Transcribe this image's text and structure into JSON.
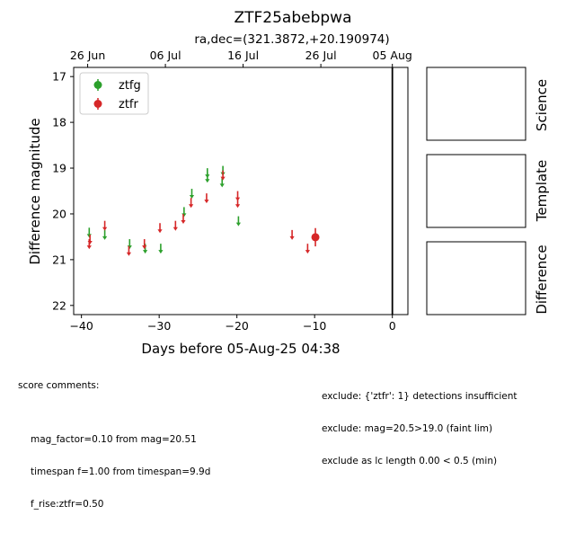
{
  "chart_data": {
    "type": "scatter",
    "title": "ZTF25abebpwa",
    "subtitle": "ra,dec=(321.3872,+20.190974)",
    "xlabel": "Days before 05-Aug-25 04:38",
    "ylabel": "Difference magnitude",
    "xlim": [
      -41,
      2
    ],
    "ylim": [
      22.2,
      16.8
    ],
    "y_inverted": true,
    "x_ticks": [
      -40,
      -30,
      -20,
      -10,
      0
    ],
    "y_ticks": [
      17,
      18,
      19,
      20,
      21,
      22
    ],
    "top_ticks": [
      {
        "x": -39.2,
        "label": "26 Jun"
      },
      {
        "x": -29.2,
        "label": "06 Jul"
      },
      {
        "x": -19.2,
        "label": "16 Jul"
      },
      {
        "x": -9.2,
        "label": "26 Jul"
      },
      {
        "x": 0.0,
        "label": "05 Aug"
      }
    ],
    "vline_x": 0,
    "legend_position": "upper-left",
    "series": [
      {
        "name": "ztfg",
        "color": "#2ca02c",
        "upper_limits": [
          {
            "x": -39.0,
            "y": 20.4
          },
          {
            "x": -37.0,
            "y": 20.45
          },
          {
            "x": -33.8,
            "y": 20.65
          },
          {
            "x": -31.8,
            "y": 20.75
          },
          {
            "x": -29.8,
            "y": 20.75
          },
          {
            "x": -26.8,
            "y": 19.95
          },
          {
            "x": -25.8,
            "y": 19.55
          },
          {
            "x": -23.8,
            "y": 19.1
          },
          {
            "x": -23.8,
            "y": 19.2
          },
          {
            "x": -21.8,
            "y": 19.05
          },
          {
            "x": -21.9,
            "y": 19.3
          },
          {
            "x": -19.8,
            "y": 20.15
          }
        ],
        "detections": []
      },
      {
        "name": "ztfr",
        "color": "#d62728",
        "upper_limits": [
          {
            "x": -38.9,
            "y": 20.55
          },
          {
            "x": -39.0,
            "y": 20.65
          },
          {
            "x": -37.0,
            "y": 20.25
          },
          {
            "x": -33.9,
            "y": 20.8
          },
          {
            "x": -31.9,
            "y": 20.65
          },
          {
            "x": -29.9,
            "y": 20.3
          },
          {
            "x": -27.9,
            "y": 20.25
          },
          {
            "x": -26.9,
            "y": 20.1
          },
          {
            "x": -25.9,
            "y": 19.75
          },
          {
            "x": -23.9,
            "y": 19.65
          },
          {
            "x": -21.8,
            "y": 19.15
          },
          {
            "x": -19.9,
            "y": 19.6
          },
          {
            "x": -19.9,
            "y": 19.75
          },
          {
            "x": -12.9,
            "y": 20.45
          },
          {
            "x": -10.9,
            "y": 20.75
          }
        ],
        "detections": [
          {
            "x": -9.9,
            "y": 20.51,
            "err": 0.2
          }
        ]
      }
    ]
  },
  "stamps": {
    "labels": [
      "Science",
      "Template",
      "Difference"
    ]
  },
  "comments": {
    "left_header": "score comments:",
    "left_lines": [
      "mag_factor=0.10 from mag=20.51",
      "timespan f=1.00 from timespan=9.9d",
      "f_rise:ztfr=0.50"
    ],
    "right_lines": [
      "exclude: {'ztfr': 1} detections insufficient",
      "exclude: mag=20.5>19.0 (faint lim)",
      "exclude as lc length 0.00 < 0.5 (min)"
    ]
  }
}
